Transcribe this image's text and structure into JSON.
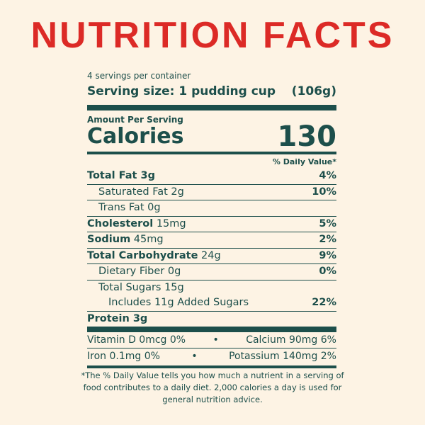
{
  "title": "NUTRITION FACTS",
  "servings": "4 servings per container",
  "serving_size": {
    "label": "Serving size: 1 pudding cup",
    "value": "(106g)"
  },
  "amount_per_serving": "Amount Per Serving",
  "calories": {
    "label": "Calories",
    "value": "130"
  },
  "daily_value_header": "% Daily Value*",
  "nutrients": [
    {
      "name": "Total Fat 3g",
      "dv": "4%",
      "style": "bold"
    },
    {
      "name": "Saturated Fat 2g",
      "dv": "10%",
      "style": "indent"
    },
    {
      "name": "Trans Fat 0g",
      "style": "indent"
    },
    {
      "name": "Cholesterol",
      "amount": "15mg",
      "dv": "5%",
      "style": "bold"
    },
    {
      "name": "Sodium",
      "amount": "45mg",
      "dv": "2%",
      "style": "bold"
    },
    {
      "name": "Total Carbohydrate",
      "amount": "24g",
      "dv": "9%",
      "style": "bold"
    },
    {
      "name": "Dietary Fiber 0g",
      "dv": "0%",
      "style": "indent"
    },
    {
      "name": "Total Sugars 15g",
      "style": "indent"
    },
    {
      "name": "Includes 11g Added Sugars",
      "dv": "22%",
      "style": "indent2"
    },
    {
      "name": "Protein 3g",
      "style": "bold"
    }
  ],
  "vitamins": [
    [
      "Vitamin D 0mcg 0%",
      "Calcium 90mg 6%"
    ],
    [
      "Iron 0.1mg 0%",
      "Potassium 140mg 2%"
    ]
  ],
  "footnote": "*The % Daily Value tells you how much a nutrient in a serving of food contributes to a daily diet. 2,000 calories a day is used for general nutrition advice."
}
